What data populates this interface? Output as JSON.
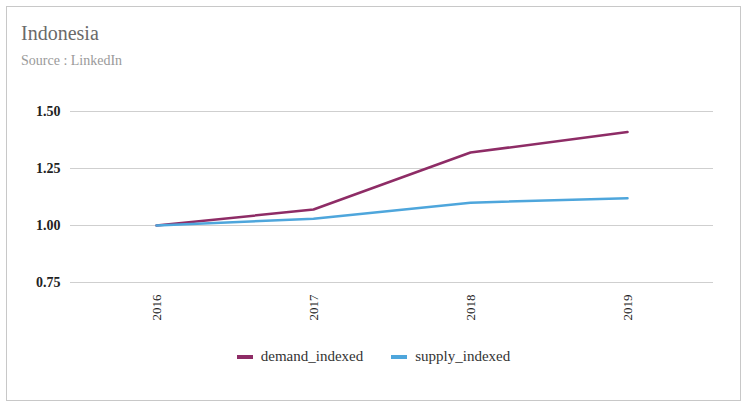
{
  "chart_data": {
    "type": "line",
    "title": "Indonesia",
    "subtitle": "Source : LinkedIn",
    "categories": [
      "2016",
      "2017",
      "2018",
      "2019"
    ],
    "series": [
      {
        "name": "demand_indexed",
        "color": "#8e2c66",
        "values": [
          1.0,
          1.07,
          1.32,
          1.41
        ]
      },
      {
        "name": "supply_indexed",
        "color": "#4ea6dc",
        "values": [
          1.0,
          1.03,
          1.1,
          1.12
        ]
      }
    ],
    "ylim": [
      0.75,
      1.5
    ],
    "yticks": [
      0.75,
      {
        "value": 1,
        "label": "1.00"
      },
      1.25,
      {
        "value": 1.5,
        "label": "1.50"
      }
    ],
    "grid": true,
    "legend": "bottom"
  }
}
